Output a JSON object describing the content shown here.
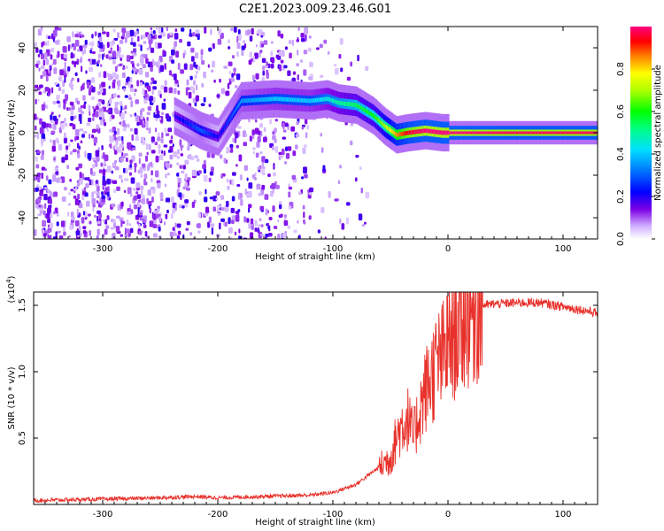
{
  "title": "C2E1.2023.009.23.46.G01",
  "colors": {
    "snr_line": "#e8302a",
    "dense_signal": "#6a00e0",
    "background": "#ffffff"
  },
  "chart_data": [
    {
      "type": "heatmap",
      "xlabel": "Height of straight line (km)",
      "ylabel": "Frequency (Hz)",
      "xlim": [
        -360,
        130
      ],
      "ylim": [
        -50,
        50
      ],
      "x_ticks": [
        -300,
        -200,
        -100,
        0,
        100
      ],
      "x_tick_labels": [
        "-300",
        "-200",
        "-100",
        "0",
        "100"
      ],
      "y_ticks": [
        -40,
        -20,
        0,
        20,
        40
      ],
      "y_tick_labels": [
        "-40",
        "-20",
        "0",
        "20",
        "40"
      ],
      "colorbar": {
        "label": "Normalized spectral amplitude",
        "range": [
          0,
          1
        ],
        "ticks": [
          0.0,
          0.2,
          0.4,
          0.6,
          0.8
        ],
        "tick_labels": [
          "0.0",
          "0.2",
          "0.4",
          "0.6",
          "0.8"
        ],
        "colormap": "rainbow"
      },
      "ridge": {
        "description_points_x": [
          -235,
          -215,
          -200,
          -180,
          -150,
          -120,
          -105,
          -95,
          -80,
          -65,
          -55,
          -45,
          -35,
          -20,
          -5,
          10,
          50,
          100,
          130
        ],
        "description_points_y": [
          7,
          1,
          -2,
          15,
          16,
          15,
          16,
          14,
          13,
          8,
          3,
          -1,
          0,
          1,
          0,
          0,
          0,
          0,
          0
        ],
        "peak_amplitude": [
          0.2,
          0.3,
          0.2,
          0.35,
          0.4,
          0.4,
          0.45,
          0.5,
          0.55,
          0.6,
          0.7,
          0.85,
          0.95,
          1.0,
          1.0,
          1.0,
          0.98,
          0.98,
          0.98
        ]
      }
    },
    {
      "type": "line",
      "xlabel": "Height of straight line (km)",
      "ylabel": "SNR (10 * v/v)",
      "y_multiplier_label": "(x10",
      "y_multiplier_exp": "4",
      "y_multiplier_close": ")",
      "xlim": [
        -360,
        130
      ],
      "ylim": [
        0,
        16000
      ],
      "x_ticks": [
        -300,
        -200,
        -100,
        0,
        100
      ],
      "x_tick_labels": [
        "-300",
        "-200",
        "-100",
        "0",
        "100"
      ],
      "y_ticks": [
        5000,
        10000,
        15000
      ],
      "y_tick_labels": [
        "0.5",
        "1.0",
        "1.5"
      ],
      "series": [
        {
          "x": [
            -360,
            -300,
            -250,
            -220,
            -200,
            -160,
            -120,
            -100,
            -80,
            -60,
            -50,
            -45,
            -40,
            -35,
            -30,
            -25,
            -20,
            -15,
            -10,
            -5,
            0,
            10,
            20,
            30,
            40,
            60,
            80,
            100,
            120,
            130
          ],
          "y": [
            300,
            400,
            500,
            600,
            500,
            600,
            700,
            900,
            1500,
            2800,
            3500,
            5000,
            6000,
            6500,
            5000,
            7000,
            8500,
            9500,
            10500,
            11000,
            12000,
            13500,
            14500,
            15000,
            15100,
            15200,
            15200,
            14900,
            14600,
            14400
          ]
        }
      ]
    }
  ]
}
